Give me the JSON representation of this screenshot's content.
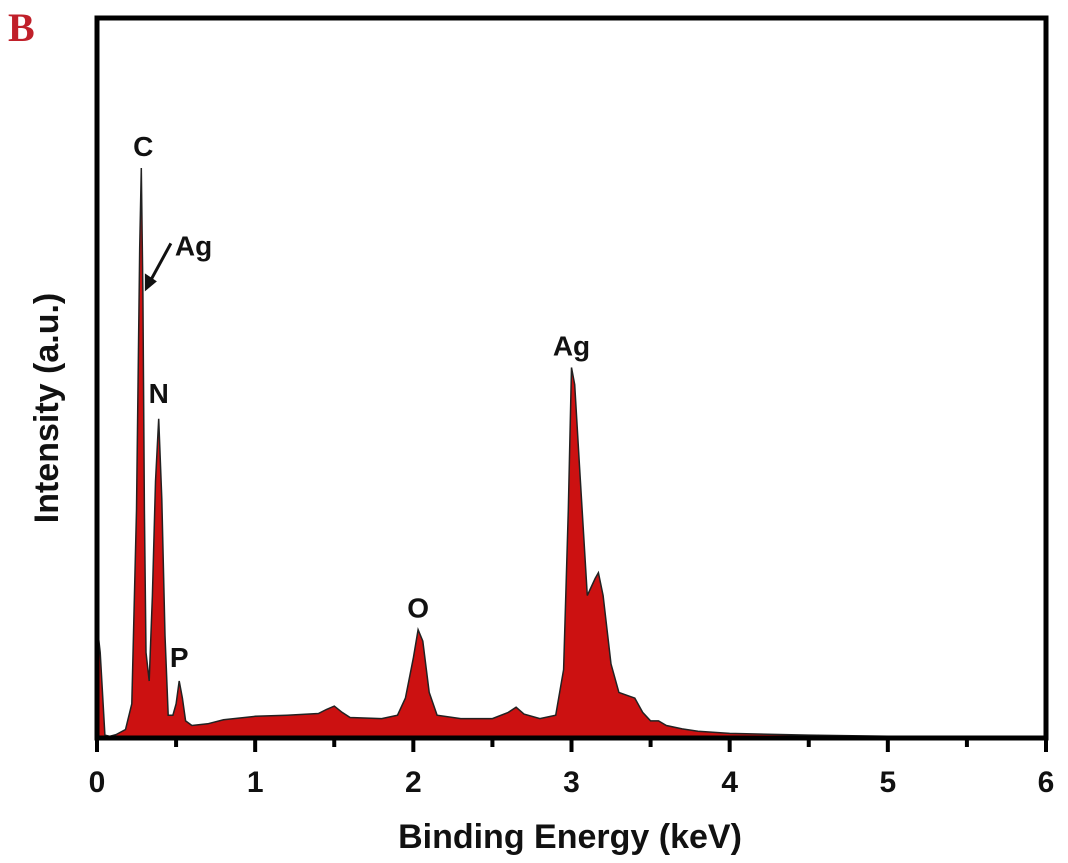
{
  "panel_label": "B",
  "chart_data": {
    "type": "area",
    "title": "",
    "xlabel": "Binding Energy (keV)",
    "ylabel": "Intensity (a.u.)",
    "xlim": [
      0,
      6
    ],
    "ylim": [
      0,
      100
    ],
    "grid": false,
    "legend": "none",
    "colors": {
      "fill": "#cc1111",
      "line": "#222222",
      "axis": "#000000"
    },
    "x_ticks": [
      0,
      1,
      2,
      3,
      4,
      5,
      6
    ],
    "x_tick_labels": [
      "0",
      "1",
      "2",
      "3",
      "4",
      "5",
      "6"
    ],
    "series": [
      {
        "x": [
          0.0,
          0.02,
          0.05,
          0.08,
          0.12,
          0.18,
          0.22,
          0.25,
          0.27,
          0.28,
          0.29,
          0.3,
          0.31,
          0.33,
          0.35,
          0.37,
          0.39,
          0.41,
          0.43,
          0.45,
          0.48,
          0.5,
          0.52,
          0.54,
          0.56,
          0.6,
          0.7,
          0.8,
          1.0,
          1.2,
          1.4,
          1.45,
          1.5,
          1.55,
          1.6,
          1.8,
          1.9,
          1.95,
          2.0,
          2.03,
          2.06,
          2.1,
          2.15,
          2.3,
          2.5,
          2.6,
          2.65,
          2.7,
          2.8,
          2.9,
          2.95,
          2.98,
          3.0,
          3.02,
          3.05,
          3.1,
          3.15,
          3.17,
          3.2,
          3.25,
          3.3,
          3.35,
          3.4,
          3.45,
          3.5,
          3.55,
          3.6,
          3.7,
          3.8,
          4.0,
          4.5,
          5.0,
          5.5,
          6.0
        ],
        "y": [
          20,
          15,
          0.5,
          0.3,
          0.6,
          1.5,
          6,
          40,
          86,
          100,
          78,
          40,
          15,
          10,
          25,
          45,
          56,
          42,
          18,
          4,
          4,
          6,
          10,
          7,
          3,
          2.2,
          2.5,
          3.2,
          3.8,
          4,
          4.3,
          5,
          5.6,
          4.5,
          3.6,
          3.4,
          4,
          7,
          14,
          19,
          17,
          8,
          4,
          3.4,
          3.4,
          4.5,
          5.4,
          4.2,
          3.4,
          4,
          12,
          40,
          65,
          62,
          48,
          25,
          28,
          29,
          25,
          13,
          8,
          7.5,
          7,
          4.5,
          3,
          3,
          2.2,
          1.6,
          1.2,
          0.8,
          0.5,
          0.3,
          0.3,
          0.2
        ]
      }
    ],
    "annotations": [
      {
        "text": "C",
        "x": 0.28,
        "y": 100
      },
      {
        "text": "Ag",
        "x": 0.29,
        "y": 78
      },
      {
        "text": "N",
        "x": 0.39,
        "y": 56
      },
      {
        "text": "P",
        "x": 0.52,
        "y": 10
      },
      {
        "text": "O",
        "x": 2.03,
        "y": 19
      },
      {
        "text": "Ag",
        "x": 3.0,
        "y": 65
      }
    ]
  }
}
